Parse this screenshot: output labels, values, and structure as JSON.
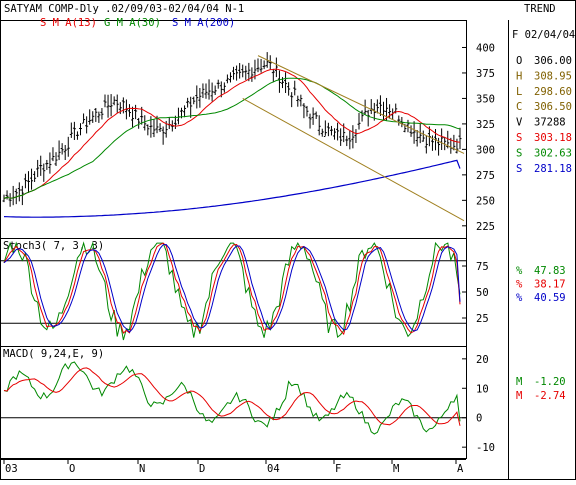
{
  "header": {
    "title": "SATYAM COMP-Dly .02/09/03-02/04/04  N-1",
    "trend_label": "TREND",
    "sma_labels": [
      {
        "text": "S M A(13)",
        "color": "#e60000"
      },
      {
        "text": "G M A(30)",
        "color": "#008800"
      },
      {
        "text": "S M A(200)",
        "color": "#0000c8"
      }
    ]
  },
  "info_panel": {
    "date": "F 02/04/04",
    "rows": [
      {
        "key": "O",
        "value": "306.00",
        "color": "#000000"
      },
      {
        "key": "H",
        "value": "308.95",
        "color": "#806000"
      },
      {
        "key": "L",
        "value": "298.60",
        "color": "#806000"
      },
      {
        "key": "C",
        "value": "306.50",
        "color": "#806000"
      },
      {
        "key": "V",
        "value": "37288",
        "color": "#000000"
      },
      {
        "key": "S",
        "value": "303.18",
        "color": "#e60000"
      },
      {
        "key": "S",
        "value": "302.63",
        "color": "#008800"
      },
      {
        "key": "S",
        "value": "281.18",
        "color": "#0000c8"
      }
    ]
  },
  "stoch_panel": {
    "label": "Stoch3( 7, 3, 3)",
    "readouts": [
      {
        "key": "%",
        "value": "47.83",
        "color": "#008800"
      },
      {
        "key": "%",
        "value": "38.17",
        "color": "#e60000"
      },
      {
        "key": "%",
        "value": "40.59",
        "color": "#0000c8"
      }
    ]
  },
  "macd_panel": {
    "label": "MACD( 9,24,E, 9)",
    "readouts": [
      {
        "key": "M",
        "value": "-1.20",
        "color": "#008800"
      },
      {
        "key": "M",
        "value": "-2.74",
        "color": "#e60000"
      }
    ]
  },
  "colors": {
    "sma13": "#e60000",
    "sma30": "#008800",
    "sma200": "#0000c8",
    "price_bars": "#000000",
    "channel": "#a08020",
    "stoch_k": "#008800",
    "stoch_d": "#e60000",
    "stoch_slow": "#0000c8",
    "macd": "#008800",
    "signal": "#e60000"
  },
  "chart_data": [
    {
      "type": "ohlc",
      "y_ticks": [
        225,
        250,
        275,
        300,
        325,
        350,
        375,
        400
      ],
      "ylim": [
        215,
        425
      ],
      "x_tick_labels": [
        "03",
        "O",
        "N",
        "D",
        "04",
        "F",
        "M",
        "A"
      ],
      "series": [
        {
          "name": "S M A(13)",
          "last_value": 303.18
        },
        {
          "name": "G M A(30)",
          "last_value": 302.63
        },
        {
          "name": "S M A(200)",
          "last_value": 281.18
        }
      ],
      "close_approx": [
        252,
        256,
        262,
        270,
        282,
        288,
        296,
        306,
        318,
        326,
        334,
        340,
        348,
        344,
        336,
        328,
        322,
        318,
        324,
        332,
        340,
        350,
        356,
        360,
        364,
        368,
        372,
        378,
        382,
        384,
        374,
        362,
        352,
        340,
        330,
        322,
        316,
        312,
        314,
        326,
        338,
        344,
        342,
        336,
        326,
        318,
        312,
        308,
        306,
        304,
        306
      ]
    },
    {
      "type": "line",
      "title": "Stoch3( 7, 3, 3)",
      "y_ticks": [
        25,
        50,
        75
      ],
      "reference_lines": [
        20,
        80
      ],
      "ylim": [
        0,
        100
      ],
      "series": [
        {
          "name": "%",
          "last_value": 47.83
        },
        {
          "name": "%",
          "last_value": 38.17
        },
        {
          "name": "%",
          "last_value": 40.59
        }
      ]
    },
    {
      "type": "line",
      "title": "MACD( 9,24,E, 9)",
      "y_ticks": [
        -10,
        0,
        10,
        20
      ],
      "ylim": [
        -13,
        23
      ],
      "series": [
        {
          "name": "M",
          "last_value": -1.2
        },
        {
          "name": "M",
          "last_value": -2.74
        }
      ]
    }
  ]
}
